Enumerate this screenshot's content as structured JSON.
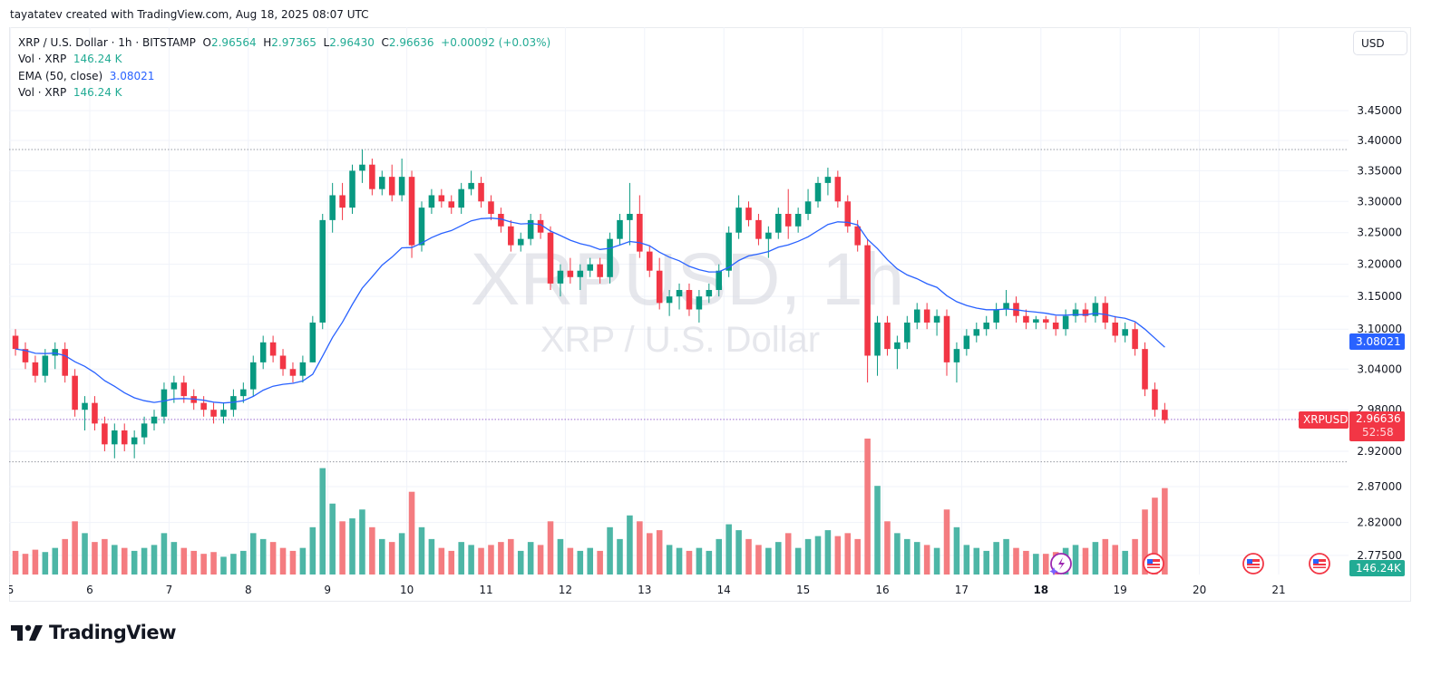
{
  "credit": "tayatatev created with TradingView.com, Aug 18, 2025 08:07 UTC",
  "legend": {
    "symbol_line": "XRP / U.S. Dollar · 1h · BITSTAMP",
    "o_label": "O",
    "o_value": "2.96564",
    "h_label": "H",
    "h_value": "2.97365",
    "l_label": "L",
    "l_value": "2.96430",
    "c_label": "C",
    "c_value": "2.96636",
    "change": "+0.00092 (+0.03%)",
    "vol1_label": "Vol · XRP",
    "vol1_value": "146.24 K",
    "ema_label": "EMA (50, close)",
    "ema_value": "3.08021",
    "vol2_label": "Vol · XRP",
    "vol2_value": "146.24 K"
  },
  "currency_button": "USD",
  "watermark": {
    "title": "XRPUSD, 1h",
    "subtitle": "XRP / U.S. Dollar"
  },
  "tags": {
    "ema_value": "3.08021",
    "symbol": "XRPUSD",
    "last_price": "2.96636",
    "countdown": "52:58",
    "volume": "146.24K"
  },
  "logo_text": "TradingView",
  "colors": {
    "up": "#089981",
    "down": "#f23645",
    "vol_up": "#4db6a6",
    "vol_down": "#f47c80",
    "ema": "#2962ff",
    "grid": "#f0f3fa",
    "text": "#131722"
  },
  "chart_data": {
    "type": "candlestick",
    "title": "XRP / U.S. Dollar · 1h · BITSTAMP",
    "symbol": "XRPUSD",
    "interval": "1h",
    "xlabel": "",
    "ylabel": "USD",
    "x_ticks": [
      "5",
      "6",
      "7",
      "8",
      "9",
      "10",
      "11",
      "12",
      "13",
      "14",
      "15",
      "16",
      "17",
      "18",
      "19",
      "20",
      "21"
    ],
    "y_ticks": [
      "3.45000",
      "3.40000",
      "3.35000",
      "3.30000",
      "3.25000",
      "3.20000",
      "3.15000",
      "3.10000",
      "3.04000",
      "2.98000",
      "2.92000",
      "2.87000",
      "2.82000",
      "2.77500"
    ],
    "ylim": [
      2.76,
      3.56
    ],
    "hlines": [
      3.385,
      2.966,
      2.905
    ],
    "indicators": [
      {
        "name": "EMA (50, close)",
        "last": 3.08021
      },
      {
        "name": "Vol · XRP",
        "last": "146.24K"
      }
    ],
    "bar_hours": 3,
    "start_day": 5.0,
    "candles_ohlcv": [
      [
        3.09,
        3.1,
        3.06,
        3.07,
        40
      ],
      [
        3.07,
        3.08,
        3.04,
        3.05,
        35
      ],
      [
        3.05,
        3.06,
        3.02,
        3.03,
        42
      ],
      [
        3.03,
        3.07,
        3.02,
        3.06,
        38
      ],
      [
        3.06,
        3.08,
        3.04,
        3.07,
        45
      ],
      [
        3.07,
        3.08,
        3.02,
        3.03,
        60
      ],
      [
        3.03,
        3.04,
        2.97,
        2.98,
        90
      ],
      [
        2.98,
        3.0,
        2.95,
        2.99,
        70
      ],
      [
        2.99,
        3.0,
        2.95,
        2.96,
        55
      ],
      [
        2.96,
        2.97,
        2.92,
        2.93,
        60
      ],
      [
        2.93,
        2.96,
        2.91,
        2.95,
        50
      ],
      [
        2.95,
        2.96,
        2.92,
        2.93,
        45
      ],
      [
        2.93,
        2.95,
        2.91,
        2.94,
        40
      ],
      [
        2.94,
        2.97,
        2.93,
        2.96,
        45
      ],
      [
        2.96,
        2.98,
        2.95,
        2.97,
        50
      ],
      [
        2.97,
        3.02,
        2.96,
        3.01,
        70
      ],
      [
        3.01,
        3.03,
        2.99,
        3.02,
        55
      ],
      [
        3.02,
        3.03,
        2.99,
        3.0,
        45
      ],
      [
        3.0,
        3.01,
        2.98,
        2.99,
        40
      ],
      [
        2.99,
        3.0,
        2.97,
        2.98,
        35
      ],
      [
        2.98,
        2.99,
        2.96,
        2.97,
        38
      ],
      [
        2.97,
        2.99,
        2.96,
        2.98,
        30
      ],
      [
        2.98,
        3.01,
        2.97,
        3.0,
        35
      ],
      [
        3.0,
        3.02,
        2.99,
        3.01,
        40
      ],
      [
        3.01,
        3.06,
        3.0,
        3.05,
        70
      ],
      [
        3.05,
        3.09,
        3.04,
        3.08,
        60
      ],
      [
        3.08,
        3.09,
        3.05,
        3.06,
        55
      ],
      [
        3.06,
        3.07,
        3.03,
        3.04,
        45
      ],
      [
        3.04,
        3.05,
        3.02,
        3.03,
        40
      ],
      [
        3.03,
        3.06,
        3.02,
        3.05,
        45
      ],
      [
        3.05,
        3.12,
        3.05,
        3.11,
        80
      ],
      [
        3.11,
        3.28,
        3.1,
        3.27,
        180
      ],
      [
        3.27,
        3.33,
        3.25,
        3.31,
        120
      ],
      [
        3.31,
        3.33,
        3.27,
        3.29,
        90
      ],
      [
        3.29,
        3.36,
        3.28,
        3.35,
        95
      ],
      [
        3.35,
        3.385,
        3.33,
        3.36,
        110
      ],
      [
        3.36,
        3.37,
        3.31,
        3.32,
        80
      ],
      [
        3.32,
        3.35,
        3.31,
        3.34,
        60
      ],
      [
        3.34,
        3.36,
        3.3,
        3.31,
        55
      ],
      [
        3.31,
        3.37,
        3.3,
        3.34,
        70
      ],
      [
        3.34,
        3.35,
        3.21,
        3.23,
        140
      ],
      [
        3.23,
        3.3,
        3.22,
        3.29,
        80
      ],
      [
        3.29,
        3.32,
        3.28,
        3.31,
        60
      ],
      [
        3.31,
        3.32,
        3.29,
        3.3,
        45
      ],
      [
        3.3,
        3.31,
        3.28,
        3.29,
        40
      ],
      [
        3.29,
        3.33,
        3.28,
        3.32,
        55
      ],
      [
        3.32,
        3.35,
        3.31,
        3.33,
        50
      ],
      [
        3.33,
        3.34,
        3.29,
        3.3,
        45
      ],
      [
        3.3,
        3.31,
        3.27,
        3.28,
        50
      ],
      [
        3.28,
        3.29,
        3.25,
        3.26,
        55
      ],
      [
        3.26,
        3.27,
        3.22,
        3.23,
        60
      ],
      [
        3.23,
        3.25,
        3.22,
        3.24,
        40
      ],
      [
        3.24,
        3.28,
        3.23,
        3.27,
        55
      ],
      [
        3.27,
        3.28,
        3.24,
        3.25,
        50
      ],
      [
        3.25,
        3.26,
        3.16,
        3.17,
        90
      ],
      [
        3.17,
        3.2,
        3.15,
        3.19,
        60
      ],
      [
        3.19,
        3.21,
        3.17,
        3.18,
        45
      ],
      [
        3.18,
        3.2,
        3.16,
        3.19,
        40
      ],
      [
        3.19,
        3.21,
        3.18,
        3.2,
        45
      ],
      [
        3.2,
        3.21,
        3.17,
        3.18,
        40
      ],
      [
        3.18,
        3.25,
        3.17,
        3.24,
        80
      ],
      [
        3.24,
        3.28,
        3.23,
        3.27,
        60
      ],
      [
        3.27,
        3.33,
        3.23,
        3.28,
        100
      ],
      [
        3.28,
        3.31,
        3.21,
        3.22,
        90
      ],
      [
        3.22,
        3.23,
        3.18,
        3.19,
        70
      ],
      [
        3.19,
        3.21,
        3.13,
        3.14,
        75
      ],
      [
        3.14,
        3.16,
        3.12,
        3.15,
        50
      ],
      [
        3.15,
        3.17,
        3.13,
        3.16,
        45
      ],
      [
        3.16,
        3.17,
        3.12,
        3.13,
        40
      ],
      [
        3.13,
        3.16,
        3.11,
        3.15,
        45
      ],
      [
        3.15,
        3.17,
        3.14,
        3.16,
        40
      ],
      [
        3.16,
        3.2,
        3.15,
        3.19,
        60
      ],
      [
        3.19,
        3.26,
        3.18,
        3.25,
        85
      ],
      [
        3.25,
        3.31,
        3.24,
        3.29,
        75
      ],
      [
        3.29,
        3.3,
        3.26,
        3.27,
        60
      ],
      [
        3.27,
        3.28,
        3.23,
        3.24,
        50
      ],
      [
        3.24,
        3.26,
        3.21,
        3.25,
        45
      ],
      [
        3.25,
        3.29,
        3.24,
        3.28,
        55
      ],
      [
        3.28,
        3.32,
        3.24,
        3.26,
        70
      ],
      [
        3.26,
        3.29,
        3.25,
        3.28,
        45
      ],
      [
        3.28,
        3.32,
        3.27,
        3.3,
        60
      ],
      [
        3.3,
        3.34,
        3.29,
        3.33,
        65
      ],
      [
        3.33,
        3.355,
        3.31,
        3.34,
        75
      ],
      [
        3.34,
        3.35,
        3.29,
        3.3,
        65
      ],
      [
        3.3,
        3.31,
        3.25,
        3.26,
        70
      ],
      [
        3.26,
        3.27,
        3.22,
        3.23,
        60
      ],
      [
        3.23,
        3.24,
        3.02,
        3.06,
        230
      ],
      [
        3.06,
        3.12,
        3.03,
        3.11,
        150
      ],
      [
        3.11,
        3.12,
        3.06,
        3.07,
        90
      ],
      [
        3.07,
        3.09,
        3.04,
        3.08,
        70
      ],
      [
        3.08,
        3.12,
        3.07,
        3.11,
        60
      ],
      [
        3.11,
        3.14,
        3.1,
        3.13,
        55
      ],
      [
        3.13,
        3.14,
        3.1,
        3.11,
        50
      ],
      [
        3.11,
        3.13,
        3.09,
        3.12,
        45
      ],
      [
        3.12,
        3.13,
        3.03,
        3.05,
        110
      ],
      [
        3.05,
        3.08,
        3.02,
        3.07,
        80
      ],
      [
        3.07,
        3.1,
        3.06,
        3.09,
        50
      ],
      [
        3.09,
        3.11,
        3.08,
        3.1,
        45
      ],
      [
        3.1,
        3.12,
        3.09,
        3.11,
        40
      ],
      [
        3.11,
        3.14,
        3.1,
        3.13,
        55
      ],
      [
        3.13,
        3.16,
        3.12,
        3.14,
        60
      ],
      [
        3.14,
        3.15,
        3.11,
        3.12,
        45
      ],
      [
        3.12,
        3.13,
        3.1,
        3.11,
        40
      ],
      [
        3.11,
        3.12,
        3.1,
        3.115,
        35
      ],
      [
        3.115,
        3.12,
        3.1,
        3.11,
        35
      ],
      [
        3.11,
        3.12,
        3.09,
        3.1,
        38
      ],
      [
        3.1,
        3.13,
        3.09,
        3.12,
        45
      ],
      [
        3.12,
        3.14,
        3.11,
        3.13,
        50
      ],
      [
        3.13,
        3.14,
        3.11,
        3.12,
        45
      ],
      [
        3.12,
        3.15,
        3.11,
        3.14,
        55
      ],
      [
        3.14,
        3.15,
        3.1,
        3.11,
        60
      ],
      [
        3.11,
        3.12,
        3.08,
        3.09,
        50
      ],
      [
        3.09,
        3.11,
        3.08,
        3.1,
        40
      ],
      [
        3.1,
        3.11,
        3.06,
        3.07,
        60
      ],
      [
        3.07,
        3.08,
        3.0,
        3.01,
        110
      ],
      [
        3.01,
        3.02,
        2.97,
        2.98,
        130
      ],
      [
        2.98,
        2.99,
        2.96,
        2.965,
        146.24
      ]
    ]
  }
}
